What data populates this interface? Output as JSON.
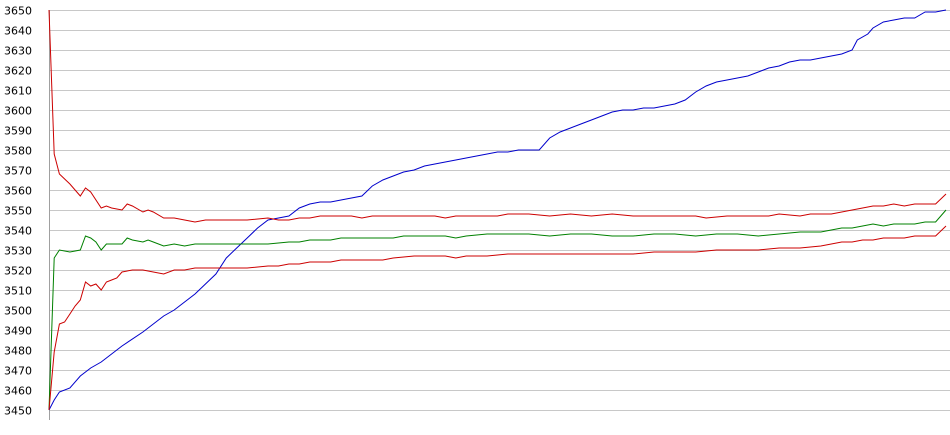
{
  "chart_data": {
    "type": "line",
    "title": "",
    "xlabel": "",
    "ylabel": "",
    "ylim": [
      3450,
      3650
    ],
    "yticks": [
      3450,
      3460,
      3470,
      3480,
      3490,
      3500,
      3510,
      3520,
      3530,
      3540,
      3550,
      3560,
      3570,
      3580,
      3590,
      3600,
      3610,
      3620,
      3630,
      3640,
      3650
    ],
    "grid": true,
    "legend": "none",
    "x_count": 160,
    "series": [
      {
        "color": "#0000cc",
        "points": [
          [
            0,
            3450
          ],
          [
            1,
            3455
          ],
          [
            2,
            3459
          ],
          [
            4,
            3461
          ],
          [
            6,
            3467
          ],
          [
            8,
            3471
          ],
          [
            10,
            3474
          ],
          [
            14,
            3482
          ],
          [
            18,
            3489
          ],
          [
            22,
            3497
          ],
          [
            24,
            3500
          ],
          [
            28,
            3508
          ],
          [
            32,
            3518
          ],
          [
            34,
            3526
          ],
          [
            36,
            3531
          ],
          [
            38,
            3536
          ],
          [
            40,
            3541
          ],
          [
            42,
            3545
          ],
          [
            44,
            3546
          ],
          [
            46,
            3547
          ],
          [
            48,
            3551
          ],
          [
            50,
            3553
          ],
          [
            52,
            3554
          ],
          [
            54,
            3554
          ],
          [
            56,
            3555
          ],
          [
            58,
            3556
          ],
          [
            60,
            3557
          ],
          [
            62,
            3562
          ],
          [
            64,
            3565
          ],
          [
            66,
            3567
          ],
          [
            68,
            3569
          ],
          [
            70,
            3570
          ],
          [
            72,
            3572
          ],
          [
            74,
            3573
          ],
          [
            76,
            3574
          ],
          [
            78,
            3575
          ],
          [
            80,
            3576
          ],
          [
            82,
            3577
          ],
          [
            84,
            3578
          ],
          [
            86,
            3579
          ],
          [
            88,
            3579
          ],
          [
            90,
            3580
          ],
          [
            92,
            3580
          ],
          [
            94,
            3580
          ],
          [
            96,
            3586
          ],
          [
            98,
            3589
          ],
          [
            100,
            3591
          ],
          [
            102,
            3593
          ],
          [
            104,
            3595
          ],
          [
            106,
            3597
          ],
          [
            108,
            3599
          ],
          [
            110,
            3600
          ],
          [
            112,
            3600
          ],
          [
            114,
            3601
          ],
          [
            116,
            3601
          ],
          [
            118,
            3602
          ],
          [
            120,
            3603
          ],
          [
            122,
            3605
          ],
          [
            124,
            3609
          ],
          [
            126,
            3612
          ],
          [
            128,
            3614
          ],
          [
            130,
            3615
          ],
          [
            132,
            3616
          ],
          [
            134,
            3617
          ],
          [
            136,
            3619
          ],
          [
            138,
            3621
          ],
          [
            140,
            3622
          ],
          [
            142,
            3624
          ],
          [
            144,
            3625
          ],
          [
            146,
            3625
          ],
          [
            148,
            3626
          ],
          [
            150,
            3627
          ],
          [
            152,
            3628
          ],
          [
            154,
            3630
          ],
          [
            155,
            3635
          ],
          [
            157,
            3638
          ],
          [
            158,
            3641
          ],
          [
            160,
            3644
          ],
          [
            162,
            3645
          ],
          [
            164,
            3646
          ],
          [
            166,
            3646
          ],
          [
            168,
            3649
          ],
          [
            170,
            3649
          ],
          [
            172,
            3650
          ]
        ]
      },
      {
        "color": "#cc0000",
        "points": [
          [
            0,
            3650
          ],
          [
            1,
            3578
          ],
          [
            2,
            3568
          ],
          [
            4,
            3563
          ],
          [
            6,
            3557
          ],
          [
            7,
            3561
          ],
          [
            8,
            3559
          ],
          [
            10,
            3551
          ],
          [
            11,
            3552
          ],
          [
            12,
            3551
          ],
          [
            14,
            3550
          ],
          [
            15,
            3553
          ],
          [
            16,
            3552
          ],
          [
            18,
            3549
          ],
          [
            19,
            3550
          ],
          [
            20,
            3549
          ],
          [
            22,
            3546
          ],
          [
            24,
            3546
          ],
          [
            26,
            3545
          ],
          [
            28,
            3544
          ],
          [
            30,
            3545
          ],
          [
            34,
            3545
          ],
          [
            38,
            3545
          ],
          [
            42,
            3546
          ],
          [
            44,
            3545
          ],
          [
            46,
            3545
          ],
          [
            48,
            3546
          ],
          [
            50,
            3546
          ],
          [
            52,
            3547
          ],
          [
            56,
            3547
          ],
          [
            58,
            3547
          ],
          [
            60,
            3546
          ],
          [
            62,
            3547
          ],
          [
            66,
            3547
          ],
          [
            70,
            3547
          ],
          [
            74,
            3547
          ],
          [
            76,
            3546
          ],
          [
            78,
            3547
          ],
          [
            82,
            3547
          ],
          [
            86,
            3547
          ],
          [
            88,
            3548
          ],
          [
            92,
            3548
          ],
          [
            96,
            3547
          ],
          [
            100,
            3548
          ],
          [
            104,
            3547
          ],
          [
            108,
            3548
          ],
          [
            112,
            3547
          ],
          [
            116,
            3547
          ],
          [
            120,
            3547
          ],
          [
            124,
            3547
          ],
          [
            126,
            3546
          ],
          [
            130,
            3547
          ],
          [
            134,
            3547
          ],
          [
            138,
            3547
          ],
          [
            140,
            3548
          ],
          [
            144,
            3547
          ],
          [
            146,
            3548
          ],
          [
            150,
            3548
          ],
          [
            152,
            3549
          ],
          [
            154,
            3550
          ],
          [
            156,
            3551
          ],
          [
            158,
            3552
          ],
          [
            160,
            3552
          ],
          [
            162,
            3553
          ],
          [
            164,
            3552
          ],
          [
            166,
            3553
          ],
          [
            168,
            3553
          ],
          [
            170,
            3553
          ],
          [
            172,
            3558
          ]
        ]
      },
      {
        "color": "#008000",
        "points": [
          [
            0,
            3450
          ],
          [
            1,
            3526
          ],
          [
            2,
            3530
          ],
          [
            4,
            3529
          ],
          [
            6,
            3530
          ],
          [
            7,
            3537
          ],
          [
            8,
            3536
          ],
          [
            9,
            3534
          ],
          [
            10,
            3530
          ],
          [
            11,
            3533
          ],
          [
            12,
            3533
          ],
          [
            14,
            3533
          ],
          [
            15,
            3536
          ],
          [
            16,
            3535
          ],
          [
            18,
            3534
          ],
          [
            19,
            3535
          ],
          [
            20,
            3534
          ],
          [
            22,
            3532
          ],
          [
            24,
            3533
          ],
          [
            26,
            3532
          ],
          [
            28,
            3533
          ],
          [
            30,
            3533
          ],
          [
            34,
            3533
          ],
          [
            38,
            3533
          ],
          [
            42,
            3533
          ],
          [
            46,
            3534
          ],
          [
            48,
            3534
          ],
          [
            50,
            3535
          ],
          [
            54,
            3535
          ],
          [
            56,
            3536
          ],
          [
            60,
            3536
          ],
          [
            64,
            3536
          ],
          [
            66,
            3536
          ],
          [
            68,
            3537
          ],
          [
            72,
            3537
          ],
          [
            76,
            3537
          ],
          [
            78,
            3536
          ],
          [
            80,
            3537
          ],
          [
            84,
            3538
          ],
          [
            88,
            3538
          ],
          [
            92,
            3538
          ],
          [
            96,
            3537
          ],
          [
            100,
            3538
          ],
          [
            104,
            3538
          ],
          [
            108,
            3537
          ],
          [
            112,
            3537
          ],
          [
            116,
            3538
          ],
          [
            120,
            3538
          ],
          [
            124,
            3537
          ],
          [
            128,
            3538
          ],
          [
            132,
            3538
          ],
          [
            136,
            3537
          ],
          [
            140,
            3538
          ],
          [
            144,
            3539
          ],
          [
            148,
            3539
          ],
          [
            150,
            3540
          ],
          [
            152,
            3541
          ],
          [
            154,
            3541
          ],
          [
            156,
            3542
          ],
          [
            158,
            3543
          ],
          [
            160,
            3542
          ],
          [
            162,
            3543
          ],
          [
            164,
            3543
          ],
          [
            166,
            3543
          ],
          [
            168,
            3544
          ],
          [
            170,
            3544
          ],
          [
            172,
            3550
          ]
        ]
      },
      {
        "color": "#cc0000",
        "points": [
          [
            0,
            3450
          ],
          [
            1,
            3479
          ],
          [
            2,
            3493
          ],
          [
            3,
            3494
          ],
          [
            4,
            3498
          ],
          [
            5,
            3502
          ],
          [
            6,
            3505
          ],
          [
            7,
            3514
          ],
          [
            8,
            3512
          ],
          [
            9,
            3513
          ],
          [
            10,
            3510
          ],
          [
            11,
            3514
          ],
          [
            12,
            3515
          ],
          [
            13,
            3516
          ],
          [
            14,
            3519
          ],
          [
            16,
            3520
          ],
          [
            18,
            3520
          ],
          [
            20,
            3519
          ],
          [
            22,
            3518
          ],
          [
            24,
            3520
          ],
          [
            26,
            3520
          ],
          [
            28,
            3521
          ],
          [
            30,
            3521
          ],
          [
            34,
            3521
          ],
          [
            38,
            3521
          ],
          [
            42,
            3522
          ],
          [
            44,
            3522
          ],
          [
            46,
            3523
          ],
          [
            48,
            3523
          ],
          [
            50,
            3524
          ],
          [
            54,
            3524
          ],
          [
            56,
            3525
          ],
          [
            60,
            3525
          ],
          [
            64,
            3525
          ],
          [
            66,
            3526
          ],
          [
            70,
            3527
          ],
          [
            74,
            3527
          ],
          [
            76,
            3527
          ],
          [
            78,
            3526
          ],
          [
            80,
            3527
          ],
          [
            84,
            3527
          ],
          [
            88,
            3528
          ],
          [
            92,
            3528
          ],
          [
            96,
            3528
          ],
          [
            100,
            3528
          ],
          [
            104,
            3528
          ],
          [
            108,
            3528
          ],
          [
            112,
            3528
          ],
          [
            116,
            3529
          ],
          [
            120,
            3529
          ],
          [
            124,
            3529
          ],
          [
            128,
            3530
          ],
          [
            132,
            3530
          ],
          [
            136,
            3530
          ],
          [
            140,
            3531
          ],
          [
            144,
            3531
          ],
          [
            148,
            3532
          ],
          [
            150,
            3533
          ],
          [
            152,
            3534
          ],
          [
            154,
            3534
          ],
          [
            156,
            3535
          ],
          [
            158,
            3535
          ],
          [
            160,
            3536
          ],
          [
            162,
            3536
          ],
          [
            164,
            3536
          ],
          [
            166,
            3537
          ],
          [
            168,
            3537
          ],
          [
            170,
            3537
          ],
          [
            172,
            3542
          ]
        ]
      }
    ]
  }
}
